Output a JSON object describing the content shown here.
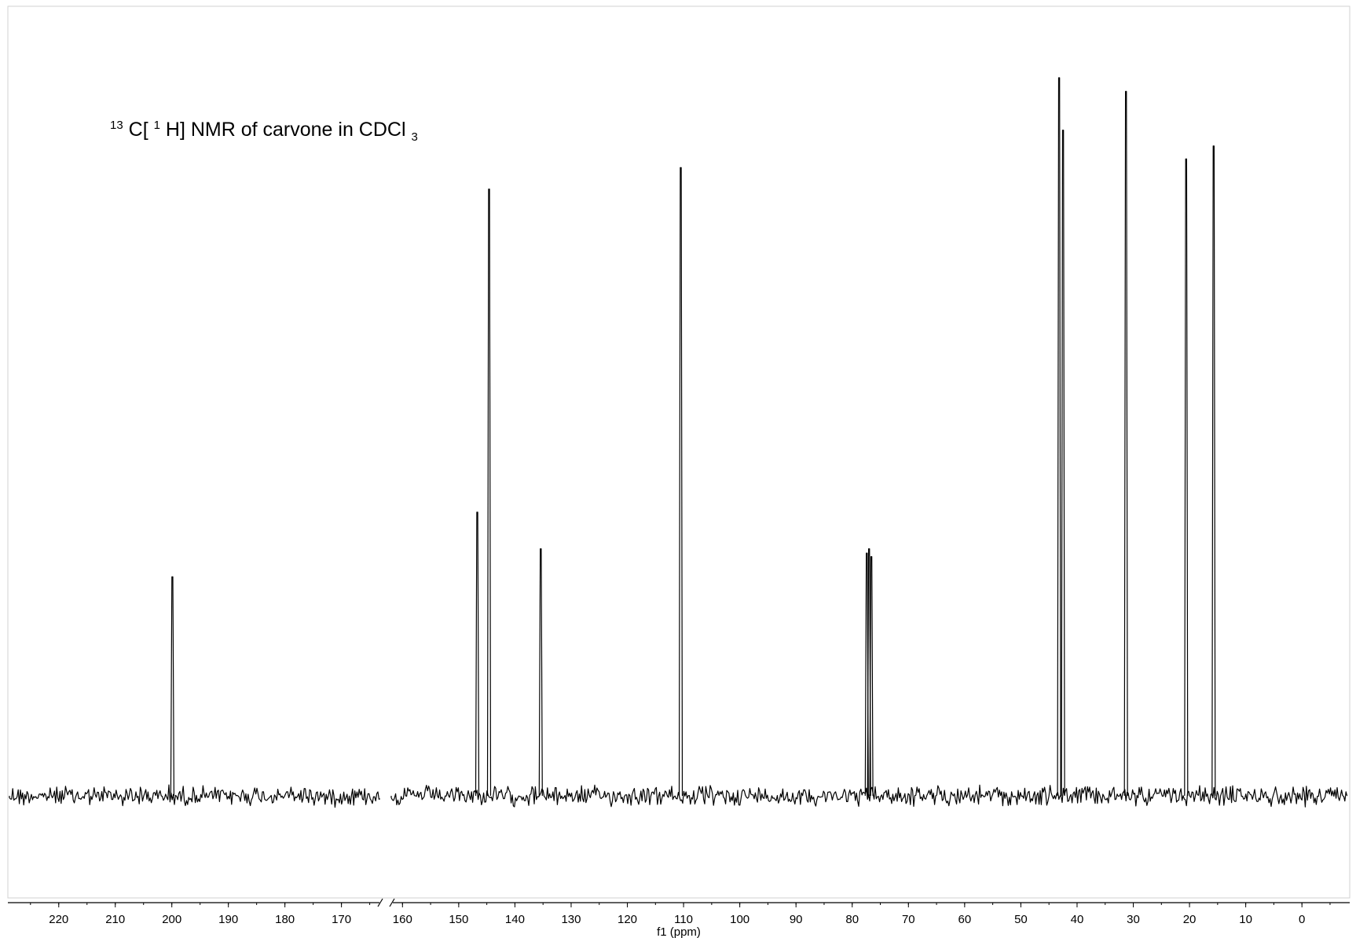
{
  "chart_data": {
    "type": "line",
    "title": {
      "mass_number": "13",
      "nucleus": "C[",
      "decoupled_mass": "1",
      "rest": "H] NMR of carvone in CDCl",
      "subscript": "3"
    },
    "xlabel": "f1 (ppm)",
    "ylabel": "",
    "x_reversed": true,
    "x_segments": [
      {
        "from": 229,
        "to": 163
      },
      {
        "from": 162,
        "to": -8.5
      }
    ],
    "axis_break": "// between 163 and 162 ppm",
    "x_ticks_major": [
      220,
      210,
      200,
      190,
      180,
      170,
      160,
      150,
      140,
      130,
      120,
      110,
      100,
      90,
      80,
      70,
      60,
      50,
      40,
      30,
      20,
      10,
      0
    ],
    "x_ticks_minor_step": 5,
    "ylim": [
      -0.35,
      1.0
    ],
    "grid": false,
    "legend": "none",
    "peaks": [
      {
        "x": 199.9,
        "y": 0.305
      },
      {
        "x": 146.7,
        "y": 0.395
      },
      {
        "x": 144.6,
        "y": 0.845
      },
      {
        "x": 135.4,
        "y": 0.344
      },
      {
        "x": 110.5,
        "y": 0.875
      },
      {
        "x": 77.4,
        "y": 0.338
      },
      {
        "x": 77.0,
        "y": 0.344
      },
      {
        "x": 76.6,
        "y": 0.333
      },
      {
        "x": 43.2,
        "y": 1.0
      },
      {
        "x": 42.5,
        "y": 0.927
      },
      {
        "x": 31.3,
        "y": 0.981
      },
      {
        "x": 20.6,
        "y": 0.887
      },
      {
        "x": 15.7,
        "y": 0.905
      }
    ],
    "noise_level": 0.012
  }
}
